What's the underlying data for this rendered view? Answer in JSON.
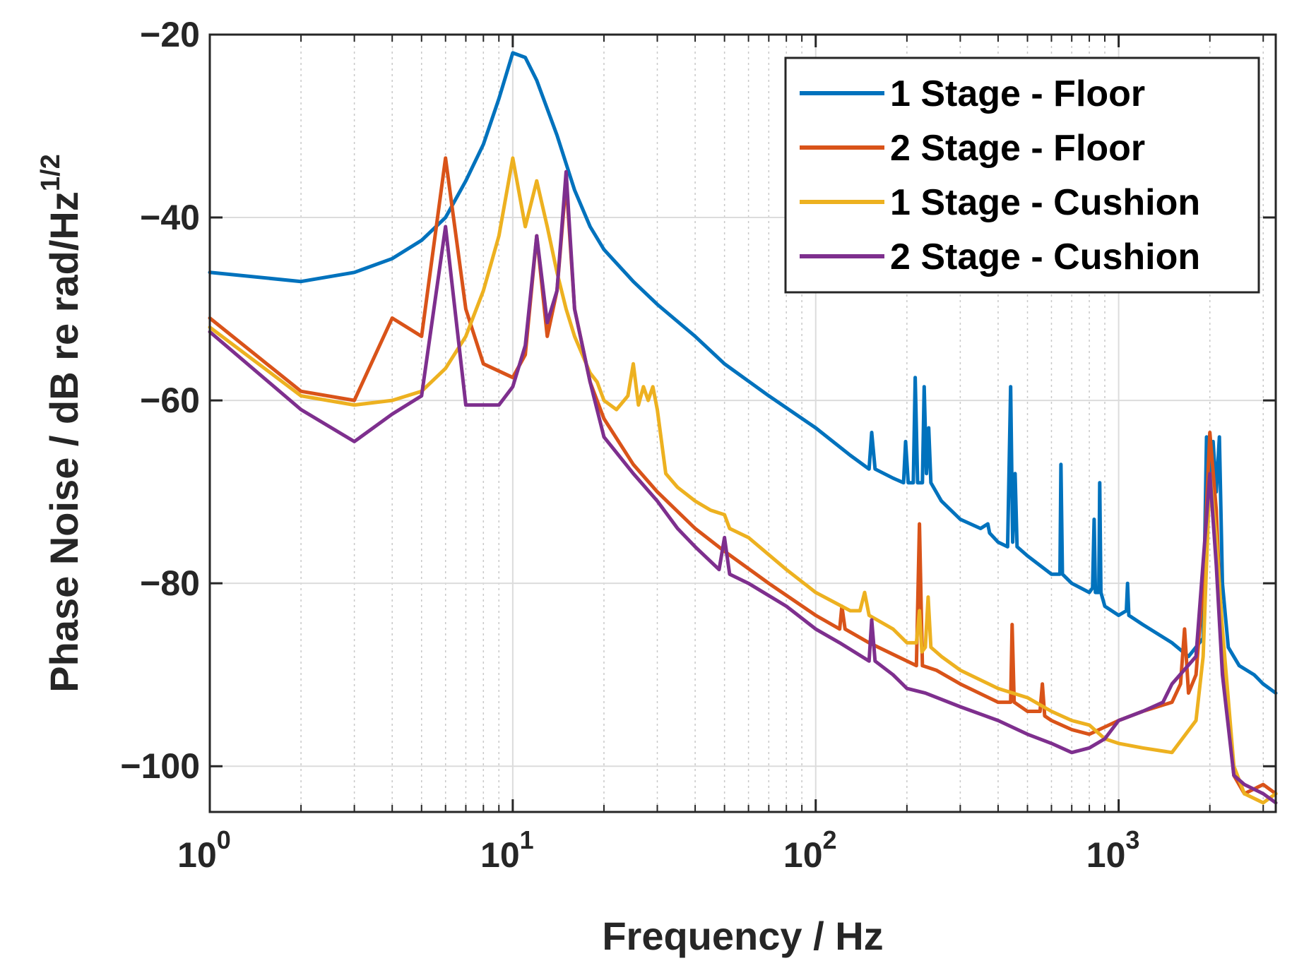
{
  "chart_data": {
    "type": "line",
    "xscale": "log",
    "xlim": [
      1,
      3300
    ],
    "ylim": [
      -105,
      -20
    ],
    "grid": true,
    "xlabel": "Frequency / Hz",
    "ylabel": "Phase Noise / dB re rad/Hz",
    "ylabel_superscript": "1/2",
    "x_ticks": [
      {
        "value": 1,
        "base": "10",
        "exp": "0"
      },
      {
        "value": 10,
        "base": "10",
        "exp": "1"
      },
      {
        "value": 100,
        "base": "10",
        "exp": "2"
      },
      {
        "value": 1000,
        "base": "10",
        "exp": "3"
      }
    ],
    "y_ticks": [
      {
        "value": -20,
        "label": "−20"
      },
      {
        "value": -40,
        "label": "−40"
      },
      {
        "value": -60,
        "label": "−60"
      },
      {
        "value": -80,
        "label": "−80"
      },
      {
        "value": -100,
        "label": "−100"
      }
    ],
    "legend_position": "top-right",
    "series": [
      {
        "name": "1 Stage - Floor",
        "color": "#0072BD",
        "points": [
          [
            1,
            -46
          ],
          [
            2,
            -47
          ],
          [
            3,
            -46
          ],
          [
            4,
            -44.5
          ],
          [
            5,
            -42.5
          ],
          [
            6,
            -40
          ],
          [
            7,
            -36
          ],
          [
            8,
            -32
          ],
          [
            9,
            -27
          ],
          [
            10,
            -22
          ],
          [
            11,
            -22.5
          ],
          [
            12,
            -25
          ],
          [
            14,
            -31
          ],
          [
            16,
            -37
          ],
          [
            18,
            -41
          ],
          [
            20,
            -43.5
          ],
          [
            25,
            -47
          ],
          [
            30,
            -49.5
          ],
          [
            40,
            -53
          ],
          [
            50,
            -56
          ],
          [
            70,
            -59.5
          ],
          [
            100,
            -63
          ],
          [
            130,
            -66
          ],
          [
            150,
            -67.5
          ],
          [
            153,
            -63.5
          ],
          [
            157,
            -67.5
          ],
          [
            180,
            -68.5
          ],
          [
            195,
            -69
          ],
          [
            198,
            -64.5
          ],
          [
            202,
            -69
          ],
          [
            210,
            -69
          ],
          [
            213,
            -57.5
          ],
          [
            217,
            -69
          ],
          [
            225,
            -69
          ],
          [
            228,
            -58.5
          ],
          [
            232,
            -68
          ],
          [
            236,
            -63
          ],
          [
            240,
            -69
          ],
          [
            260,
            -71
          ],
          [
            300,
            -73
          ],
          [
            350,
            -74
          ],
          [
            370,
            -73.5
          ],
          [
            375,
            -74.5
          ],
          [
            400,
            -75.5
          ],
          [
            430,
            -76
          ],
          [
            440,
            -58.5
          ],
          [
            447,
            -75.5
          ],
          [
            455,
            -68
          ],
          [
            462,
            -76
          ],
          [
            500,
            -77
          ],
          [
            600,
            -79
          ],
          [
            640,
            -79
          ],
          [
            645,
            -67
          ],
          [
            652,
            -79
          ],
          [
            700,
            -80
          ],
          [
            800,
            -81
          ],
          [
            820,
            -80.5
          ],
          [
            830,
            -73
          ],
          [
            838,
            -81
          ],
          [
            860,
            -81
          ],
          [
            866,
            -69
          ],
          [
            874,
            -81
          ],
          [
            900,
            -82.5
          ],
          [
            1000,
            -83.5
          ],
          [
            1060,
            -83
          ],
          [
            1070,
            -80
          ],
          [
            1080,
            -83.5
          ],
          [
            1200,
            -84.5
          ],
          [
            1500,
            -86.5
          ],
          [
            1700,
            -88
          ],
          [
            1900,
            -86
          ],
          [
            1950,
            -64
          ],
          [
            2000,
            -70
          ],
          [
            2050,
            -64.5
          ],
          [
            2100,
            -70
          ],
          [
            2150,
            -64
          ],
          [
            2200,
            -80
          ],
          [
            2300,
            -87
          ],
          [
            2500,
            -89
          ],
          [
            2800,
            -90
          ],
          [
            3000,
            -91
          ],
          [
            3300,
            -92
          ]
        ]
      },
      {
        "name": "2 Stage - Floor",
        "color": "#D95319",
        "points": [
          [
            1,
            -51
          ],
          [
            2,
            -59
          ],
          [
            3,
            -60
          ],
          [
            4,
            -51
          ],
          [
            5,
            -53
          ],
          [
            6,
            -33.5
          ],
          [
            7,
            -50
          ],
          [
            8,
            -56
          ],
          [
            10,
            -57.5
          ],
          [
            11,
            -55
          ],
          [
            12,
            -42
          ],
          [
            13,
            -53
          ],
          [
            14,
            -48
          ],
          [
            15,
            -36
          ],
          [
            16,
            -50
          ],
          [
            18,
            -58
          ],
          [
            20,
            -62
          ],
          [
            25,
            -67
          ],
          [
            30,
            -70
          ],
          [
            40,
            -74
          ],
          [
            50,
            -76.5
          ],
          [
            70,
            -80
          ],
          [
            100,
            -83.5
          ],
          [
            120,
            -85
          ],
          [
            122,
            -82.5
          ],
          [
            125,
            -85
          ],
          [
            150,
            -86.5
          ],
          [
            200,
            -88.5
          ],
          [
            215,
            -89
          ],
          [
            220,
            -73.5
          ],
          [
            225,
            -89
          ],
          [
            250,
            -89.5
          ],
          [
            300,
            -91
          ],
          [
            400,
            -93
          ],
          [
            440,
            -93
          ],
          [
            445,
            -84.5
          ],
          [
            452,
            -93
          ],
          [
            500,
            -94
          ],
          [
            550,
            -94
          ],
          [
            560,
            -91
          ],
          [
            570,
            -94.5
          ],
          [
            600,
            -95
          ],
          [
            700,
            -96
          ],
          [
            800,
            -96.5
          ],
          [
            1000,
            -95
          ],
          [
            1200,
            -94
          ],
          [
            1500,
            -93
          ],
          [
            1600,
            -91
          ],
          [
            1650,
            -85
          ],
          [
            1700,
            -92
          ],
          [
            1800,
            -90
          ],
          [
            1900,
            -80
          ],
          [
            2000,
            -63.5
          ],
          [
            2100,
            -72
          ],
          [
            2200,
            -88
          ],
          [
            2400,
            -101
          ],
          [
            2600,
            -103
          ],
          [
            3000,
            -102
          ],
          [
            3300,
            -103
          ]
        ]
      },
      {
        "name": "1 Stage - Cushion",
        "color": "#EDB120",
        "points": [
          [
            1,
            -52
          ],
          [
            2,
            -59.5
          ],
          [
            3,
            -60.5
          ],
          [
            4,
            -60
          ],
          [
            5,
            -59
          ],
          [
            6,
            -56.5
          ],
          [
            7,
            -53
          ],
          [
            8,
            -48
          ],
          [
            9,
            -42
          ],
          [
            10,
            -33.5
          ],
          [
            11,
            -41
          ],
          [
            12,
            -36
          ],
          [
            13,
            -41
          ],
          [
            14,
            -46
          ],
          [
            15,
            -50
          ],
          [
            16,
            -53
          ],
          [
            18,
            -57
          ],
          [
            19,
            -58
          ],
          [
            20,
            -60
          ],
          [
            22,
            -61
          ],
          [
            24,
            -59.5
          ],
          [
            25,
            -56
          ],
          [
            26,
            -60.5
          ],
          [
            27,
            -58.5
          ],
          [
            28,
            -60
          ],
          [
            29,
            -58.5
          ],
          [
            30,
            -61
          ],
          [
            32,
            -68
          ],
          [
            35,
            -69.5
          ],
          [
            40,
            -71
          ],
          [
            45,
            -72
          ],
          [
            50,
            -72.5
          ],
          [
            52,
            -74
          ],
          [
            60,
            -75
          ],
          [
            80,
            -78.5
          ],
          [
            100,
            -81
          ],
          [
            130,
            -83
          ],
          [
            140,
            -83
          ],
          [
            145,
            -81
          ],
          [
            150,
            -83.5
          ],
          [
            180,
            -85
          ],
          [
            200,
            -86.5
          ],
          [
            215,
            -86.5
          ],
          [
            220,
            -83
          ],
          [
            224,
            -87.5
          ],
          [
            230,
            -87
          ],
          [
            235,
            -81.5
          ],
          [
            240,
            -87
          ],
          [
            260,
            -88
          ],
          [
            300,
            -89.5
          ],
          [
            400,
            -91.5
          ],
          [
            500,
            -92.5
          ],
          [
            600,
            -94
          ],
          [
            700,
            -95
          ],
          [
            800,
            -95.5
          ],
          [
            900,
            -97
          ],
          [
            1000,
            -97.5
          ],
          [
            1200,
            -98
          ],
          [
            1500,
            -98.5
          ],
          [
            1800,
            -95
          ],
          [
            1900,
            -88
          ],
          [
            2000,
            -68
          ],
          [
            2100,
            -75
          ],
          [
            2200,
            -85
          ],
          [
            2400,
            -100
          ],
          [
            2600,
            -103
          ],
          [
            3000,
            -104
          ],
          [
            3300,
            -103
          ]
        ]
      },
      {
        "name": "2 Stage - Cushion",
        "color": "#7E2F8E",
        "points": [
          [
            1,
            -52.5
          ],
          [
            2,
            -61
          ],
          [
            3,
            -64.5
          ],
          [
            4,
            -61.5
          ],
          [
            5,
            -59.5
          ],
          [
            6,
            -41
          ],
          [
            7,
            -60.5
          ],
          [
            8,
            -60.5
          ],
          [
            9,
            -60.5
          ],
          [
            10,
            -58.5
          ],
          [
            11,
            -54
          ],
          [
            12,
            -42
          ],
          [
            13,
            -51.5
          ],
          [
            14,
            -48
          ],
          [
            15,
            -35
          ],
          [
            16,
            -50
          ],
          [
            18,
            -58
          ],
          [
            20,
            -64
          ],
          [
            25,
            -68
          ],
          [
            30,
            -71
          ],
          [
            35,
            -74
          ],
          [
            40,
            -76
          ],
          [
            48,
            -78.5
          ],
          [
            50,
            -75
          ],
          [
            52,
            -79
          ],
          [
            60,
            -80
          ],
          [
            80,
            -82.5
          ],
          [
            100,
            -85
          ],
          [
            120,
            -86.5
          ],
          [
            150,
            -88.5
          ],
          [
            153,
            -84
          ],
          [
            157,
            -88.5
          ],
          [
            180,
            -90
          ],
          [
            200,
            -91.5
          ],
          [
            230,
            -92
          ],
          [
            300,
            -93.5
          ],
          [
            400,
            -95
          ],
          [
            500,
            -96.5
          ],
          [
            600,
            -97.5
          ],
          [
            700,
            -98.5
          ],
          [
            800,
            -98
          ],
          [
            900,
            -97
          ],
          [
            1000,
            -95
          ],
          [
            1200,
            -94
          ],
          [
            1400,
            -93
          ],
          [
            1500,
            -91
          ],
          [
            1800,
            -88
          ],
          [
            2000,
            -68
          ],
          [
            2100,
            -78
          ],
          [
            2200,
            -90
          ],
          [
            2400,
            -101
          ],
          [
            2600,
            -102
          ],
          [
            3000,
            -103
          ],
          [
            3300,
            -104
          ]
        ]
      }
    ]
  }
}
